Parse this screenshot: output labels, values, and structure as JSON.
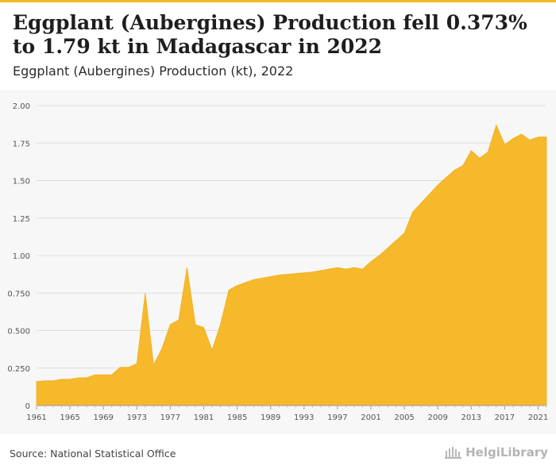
{
  "header": {
    "title": "Eggplant (Aubergines) Production fell 0.373% to 1.79 kt in Madagascar in 2022",
    "subtitle": "Eggplant (Aubergines) Production (kt), 2022"
  },
  "footer": {
    "source": "Source: National Statistical Office",
    "logo_text": "HelgiLibrary"
  },
  "colors": {
    "area": "#f6b92b",
    "accent": "#f6b92b",
    "grid": "#dddddd"
  },
  "chart_data": {
    "type": "area",
    "title": "Eggplant (Aubergines) Production fell 0.373% to 1.79 kt in Madagascar in 2022",
    "subtitle": "Eggplant (Aubergines) Production (kt), 2022",
    "xlabel": "",
    "ylabel": "",
    "xlim": [
      1961,
      2022
    ],
    "ylim": [
      0,
      2.0
    ],
    "y_ticks": [
      "0",
      "0.250",
      "0.500",
      "0.750",
      "1.00",
      "1.25",
      "1.50",
      "1.75",
      "2.00"
    ],
    "x_ticks": [
      "1961",
      "1965",
      "1969",
      "1973",
      "1977",
      "1981",
      "1985",
      "1989",
      "1993",
      "1997",
      "2001",
      "2005",
      "2009",
      "2013",
      "2017",
      "2021"
    ],
    "grid": true,
    "x": [
      1961,
      1962,
      1963,
      1964,
      1965,
      1966,
      1967,
      1968,
      1969,
      1970,
      1971,
      1972,
      1973,
      1974,
      1975,
      1976,
      1977,
      1978,
      1979,
      1980,
      1981,
      1982,
      1983,
      1984,
      1985,
      1986,
      1987,
      1988,
      1989,
      1990,
      1991,
      1992,
      1993,
      1994,
      1995,
      1996,
      1997,
      1998,
      1999,
      2000,
      2001,
      2002,
      2003,
      2004,
      2005,
      2006,
      2007,
      2008,
      2009,
      2010,
      2011,
      2012,
      2013,
      2014,
      2015,
      2016,
      2017,
      2018,
      2019,
      2020,
      2021,
      2022
    ],
    "series": [
      {
        "values": [
          0.16,
          0.165,
          0.165,
          0.175,
          0.175,
          0.185,
          0.185,
          0.205,
          0.205,
          0.205,
          0.255,
          0.255,
          0.28,
          0.75,
          0.27,
          0.38,
          0.54,
          0.57,
          0.92,
          0.54,
          0.52,
          0.37,
          0.54,
          0.77,
          0.8,
          0.82,
          0.84,
          0.85,
          0.86,
          0.87,
          0.875,
          0.88,
          0.885,
          0.89,
          0.9,
          0.91,
          0.92,
          0.91,
          0.92,
          0.91,
          0.96,
          1.0,
          1.05,
          1.1,
          1.15,
          1.29,
          1.35,
          1.41,
          1.47,
          1.52,
          1.57,
          1.6,
          1.7,
          1.65,
          1.69,
          1.87,
          1.74,
          1.78,
          1.81,
          1.77,
          1.79,
          1.79
        ]
      }
    ]
  }
}
